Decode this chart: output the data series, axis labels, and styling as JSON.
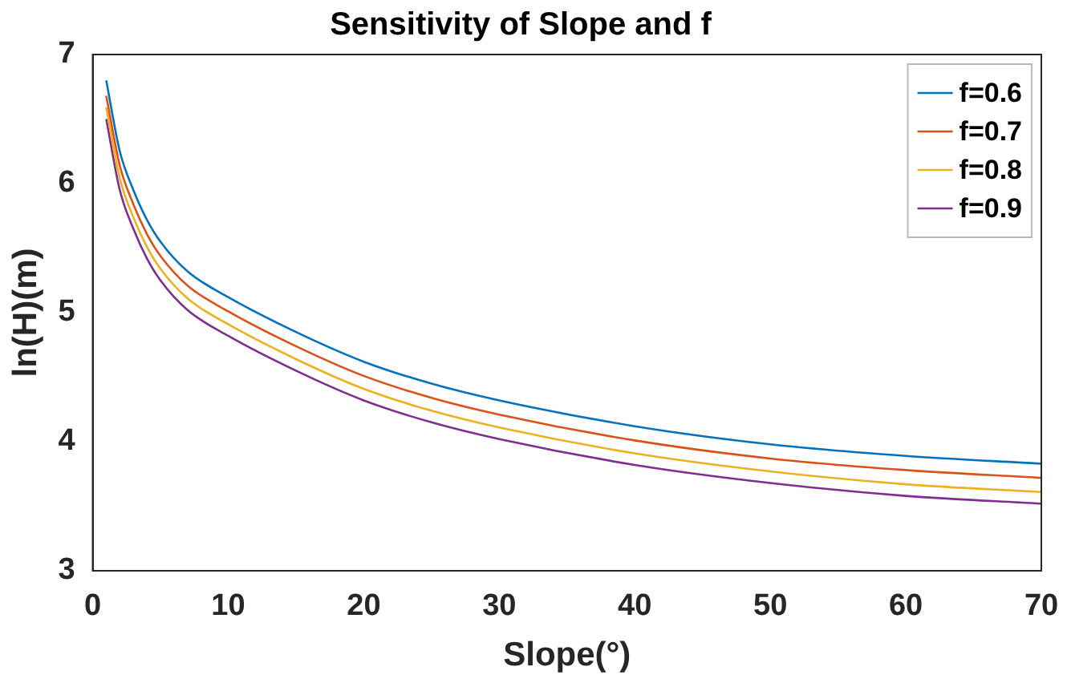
{
  "chart_data": {
    "type": "line",
    "title": "Sensitivity of Slope and f",
    "xlabel": "Slope(°)",
    "ylabel": "ln(H)(m)",
    "x": [
      1,
      2,
      3,
      4,
      5,
      7,
      10,
      15,
      20,
      25,
      30,
      40,
      50,
      60,
      70
    ],
    "series": [
      {
        "name": "f=0.6",
        "color": "#0072bd",
        "values": [
          6.8,
          6.25,
          5.95,
          5.72,
          5.55,
          5.32,
          5.12,
          4.85,
          4.62,
          4.45,
          4.32,
          4.12,
          3.98,
          3.89,
          3.83
        ]
      },
      {
        "name": "f=0.7",
        "color": "#d95319",
        "values": [
          6.68,
          6.14,
          5.84,
          5.61,
          5.44,
          5.21,
          5.01,
          4.74,
          4.51,
          4.34,
          4.21,
          4.01,
          3.87,
          3.78,
          3.72
        ]
      },
      {
        "name": "f=0.8",
        "color": "#edb120",
        "values": [
          6.59,
          6.04,
          5.74,
          5.51,
          5.34,
          5.11,
          4.91,
          4.64,
          4.41,
          4.24,
          4.11,
          3.91,
          3.77,
          3.67,
          3.61
        ]
      },
      {
        "name": "f=0.9",
        "color": "#7e2f8e",
        "values": [
          6.5,
          5.95,
          5.65,
          5.42,
          5.25,
          5.02,
          4.82,
          4.55,
          4.32,
          4.15,
          4.02,
          3.82,
          3.68,
          3.58,
          3.52
        ]
      }
    ],
    "xlim": [
      0,
      70
    ],
    "xticks": [
      0,
      10,
      20,
      30,
      40,
      50,
      60,
      70
    ],
    "ylim": [
      3,
      7
    ],
    "yticks": [
      3,
      4,
      5,
      6,
      7
    ],
    "grid": false,
    "legend": "top right",
    "marker": "none",
    "line_style": "solid"
  }
}
